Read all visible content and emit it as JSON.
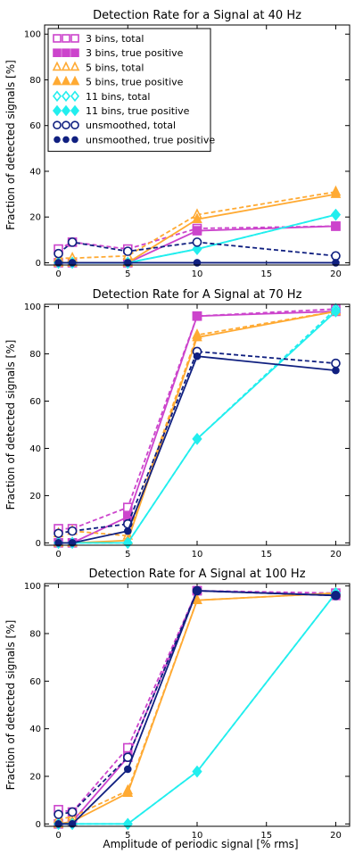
{
  "figure": {
    "xlabel": "Amplitude of periodic signal [% rms]"
  },
  "legend": [
    {
      "label": "3 bins, total",
      "series": "s3_total"
    },
    {
      "label": "3 bins, true positive",
      "series": "s3_tp"
    },
    {
      "label": "5 bins, total",
      "series": "s5_total"
    },
    {
      "label": "5 bins, true positive",
      "series": "s5_tp"
    },
    {
      "label": "11 bins, total",
      "series": "s11_total"
    },
    {
      "label": "11 bins, true positive",
      "series": "s11_tp"
    },
    {
      "label": "unsmoothed, total",
      "series": "su_total"
    },
    {
      "label": "unsmoothed, true positive",
      "series": "su_tp"
    }
  ],
  "colors": {
    "magenta": "#cc44cc",
    "orange": "#ffaa33",
    "cyan": "#22eeee",
    "navy": "#102080"
  },
  "chart_data": [
    {
      "type": "line",
      "title": "Detection Rate for a Signal at 40 Hz",
      "xlabel": "",
      "ylabel": "Fraction of detected signals [%]",
      "xlim": [
        -1,
        21
      ],
      "ylim": [
        -1,
        104
      ],
      "xticks": [
        0,
        5,
        10,
        15,
        20
      ],
      "yticks": [
        0,
        20,
        40,
        60,
        80,
        100
      ],
      "legend_position": "top-left",
      "x": [
        0,
        1,
        5,
        10,
        20
      ],
      "series": [
        {
          "name": "3 bins, total",
          "key": "s3_total",
          "values": [
            6,
            9,
            6,
            15,
            16
          ]
        },
        {
          "name": "3 bins, true positive",
          "key": "s3_tp",
          "values": [
            0,
            0,
            0,
            14,
            16
          ]
        },
        {
          "name": "5 bins, total",
          "key": "s5_total",
          "values": [
            2,
            2,
            3,
            21,
            31
          ]
        },
        {
          "name": "5 bins, true positive",
          "key": "s5_tp",
          "values": [
            0,
            0,
            0,
            19,
            30
          ]
        },
        {
          "name": "11 bins, total",
          "key": "s11_total",
          "values": [
            0,
            0,
            0,
            6,
            21
          ]
        },
        {
          "name": "11 bins, true positive",
          "key": "s11_tp",
          "values": [
            0,
            0,
            0,
            6,
            21
          ]
        },
        {
          "name": "unsmoothed, total",
          "key": "su_total",
          "values": [
            4,
            9,
            5,
            9,
            3
          ]
        },
        {
          "name": "unsmoothed, true positive",
          "key": "su_tp",
          "values": [
            0,
            0,
            0,
            0,
            0
          ]
        }
      ]
    },
    {
      "type": "line",
      "title": "Detection Rate for A Signal at 70 Hz",
      "xlabel": "",
      "ylabel": "Fraction of detected signals [%]",
      "xlim": [
        -1,
        21
      ],
      "ylim": [
        -1,
        101
      ],
      "xticks": [
        0,
        5,
        10,
        15,
        20
      ],
      "yticks": [
        0,
        20,
        40,
        60,
        80,
        100
      ],
      "x": [
        0,
        1,
        5,
        10,
        20
      ],
      "series": [
        {
          "name": "3 bins, total",
          "key": "s3_total",
          "values": [
            6,
            6,
            15,
            96,
            99
          ]
        },
        {
          "name": "3 bins, true positive",
          "key": "s3_tp",
          "values": [
            0,
            0,
            11,
            96,
            98
          ]
        },
        {
          "name": "5 bins, total",
          "key": "s5_total",
          "values": [
            4,
            5,
            3,
            88,
            98
          ]
        },
        {
          "name": "5 bins, true positive",
          "key": "s5_tp",
          "values": [
            0,
            0,
            1,
            87,
            98
          ]
        },
        {
          "name": "11 bins, total",
          "key": "s11_total",
          "values": [
            0,
            0,
            0,
            44,
            99
          ]
        },
        {
          "name": "11 bins, true positive",
          "key": "s11_tp",
          "values": [
            0,
            0,
            0,
            44,
            98
          ]
        },
        {
          "name": "unsmoothed, total",
          "key": "su_total",
          "values": [
            4,
            5,
            8,
            81,
            76
          ]
        },
        {
          "name": "unsmoothed, true positive",
          "key": "su_tp",
          "values": [
            0,
            0,
            5,
            79,
            73
          ]
        }
      ]
    },
    {
      "type": "line",
      "title": "Detection Rate for A Signal at 100 Hz",
      "xlabel": "Amplitude of periodic signal [% rms]",
      "ylabel": "Fraction of detected signals [%]",
      "xlim": [
        -1,
        21
      ],
      "ylim": [
        -1,
        101
      ],
      "xticks": [
        0,
        5,
        10,
        15,
        20
      ],
      "yticks": [
        0,
        20,
        40,
        60,
        80,
        100
      ],
      "x": [
        0,
        1,
        5,
        10,
        20
      ],
      "series": [
        {
          "name": "3 bins, total",
          "key": "s3_total",
          "values": [
            6,
            5,
            32,
            98,
            97
          ]
        },
        {
          "name": "3 bins, true positive",
          "key": "s3_tp",
          "values": [
            0,
            1,
            28,
            98,
            96
          ]
        },
        {
          "name": "5 bins, total",
          "key": "s5_total",
          "values": [
            2,
            3,
            14,
            94,
            97
          ]
        },
        {
          "name": "5 bins, true positive",
          "key": "s5_tp",
          "values": [
            0,
            1,
            13,
            94,
            97
          ]
        },
        {
          "name": "11 bins, total",
          "key": "s11_total",
          "values": [
            0,
            0,
            0,
            22,
            97
          ]
        },
        {
          "name": "11 bins, true positive",
          "key": "s11_tp",
          "values": [
            0,
            0,
            0,
            22,
            97
          ]
        },
        {
          "name": "unsmoothed, total",
          "key": "su_total",
          "values": [
            4,
            5,
            28,
            98,
            96
          ]
        },
        {
          "name": "unsmoothed, true positive",
          "key": "su_tp",
          "values": [
            0,
            0,
            23,
            98,
            96
          ]
        }
      ]
    }
  ]
}
